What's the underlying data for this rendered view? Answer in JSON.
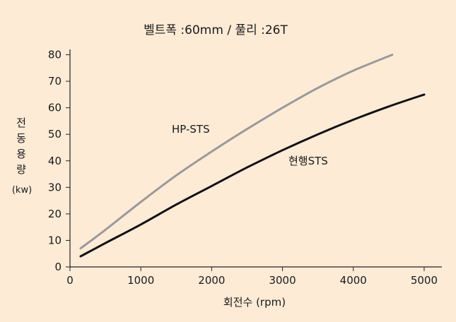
{
  "chart_data": {
    "type": "line",
    "title": "벨트폭 :60mm / 풀리 :26T",
    "xlabel": "회전수 (rpm)",
    "ylabel_chars": [
      "전",
      "동",
      "용",
      "량"
    ],
    "ylabel_unit": "(kw)",
    "xlim": [
      0,
      5250
    ],
    "ylim": [
      0,
      82
    ],
    "x_ticks": [
      0,
      1000,
      2000,
      3000,
      4000,
      5000
    ],
    "y_ticks": [
      0,
      10,
      20,
      30,
      40,
      50,
      60,
      70,
      80
    ],
    "grid": false,
    "series": [
      {
        "name": "HP-STS",
        "color": "#9a9a9a",
        "x": [
          150,
          500,
          1000,
          1500,
          2000,
          2500,
          3000,
          3500,
          4000,
          4550
        ],
        "y": [
          7,
          14,
          24.5,
          34.5,
          43.5,
          52,
          60,
          67.5,
          74,
          80
        ]
      },
      {
        "name": "현행STS",
        "color": "#111111",
        "x": [
          150,
          500,
          1000,
          1500,
          2000,
          2500,
          3000,
          3500,
          4000,
          4500,
          5000
        ],
        "y": [
          4,
          9,
          16,
          23.5,
          30.5,
          37.5,
          44,
          50,
          55.5,
          60.5,
          65
        ]
      }
    ]
  }
}
